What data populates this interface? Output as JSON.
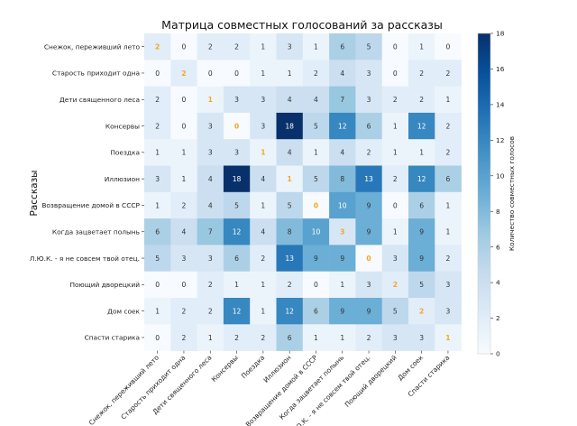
{
  "chart_data": {
    "type": "heatmap",
    "title": "Матрица совместных голосований за рассказы",
    "xlabel": "",
    "ylabel": "Рассказы",
    "colorbar_label": "Количество совместных голосов",
    "vmin": 0,
    "vmax": 18,
    "colorbar_ticks": [
      0,
      2,
      4,
      6,
      8,
      10,
      12,
      14,
      16,
      18
    ],
    "labels": [
      "Снежок, переживший лето",
      "Старость приходит одна",
      "Дети священного леса",
      "Консервы",
      "Поездка",
      "Иллюзион",
      "Возвращение домой в СССР",
      "Когда зацветает полынь",
      "Л.Ю.К. - я не совсем твой отец.",
      "Поющий дворецкий",
      "Дом соек",
      "Спасти старика"
    ],
    "matrix": [
      [
        2,
        0,
        2,
        2,
        1,
        3,
        1,
        6,
        5,
        0,
        1,
        0
      ],
      [
        0,
        2,
        0,
        0,
        1,
        1,
        2,
        4,
        3,
        0,
        2,
        2
      ],
      [
        2,
        0,
        1,
        3,
        3,
        4,
        4,
        7,
        3,
        2,
        2,
        1
      ],
      [
        2,
        0,
        3,
        0,
        3,
        18,
        5,
        12,
        6,
        1,
        12,
        2
      ],
      [
        1,
        1,
        3,
        3,
        1,
        4,
        1,
        4,
        2,
        1,
        1,
        2
      ],
      [
        3,
        1,
        4,
        18,
        4,
        1,
        5,
        8,
        13,
        2,
        12,
        6
      ],
      [
        1,
        2,
        4,
        5,
        1,
        5,
        0,
        10,
        9,
        0,
        6,
        1
      ],
      [
        6,
        4,
        7,
        12,
        4,
        8,
        10,
        3,
        9,
        1,
        9,
        1
      ],
      [
        5,
        3,
        3,
        6,
        2,
        13,
        9,
        9,
        0,
        3,
        9,
        2
      ],
      [
        0,
        0,
        2,
        1,
        1,
        2,
        0,
        1,
        3,
        2,
        5,
        3
      ],
      [
        1,
        2,
        2,
        12,
        1,
        12,
        6,
        9,
        9,
        5,
        2,
        3
      ],
      [
        0,
        2,
        1,
        2,
        2,
        6,
        1,
        1,
        2,
        3,
        3,
        1
      ]
    ],
    "colors": {
      "diagonal_text": "#f5a623",
      "dark_text": "#333333",
      "light_text": "#ffffff",
      "scale": [
        "#f7fbff",
        "#deebf7",
        "#c6dbef",
        "#9ecae1",
        "#6baed6",
        "#4292c6",
        "#2171b5",
        "#08519c",
        "#08306b"
      ]
    }
  }
}
